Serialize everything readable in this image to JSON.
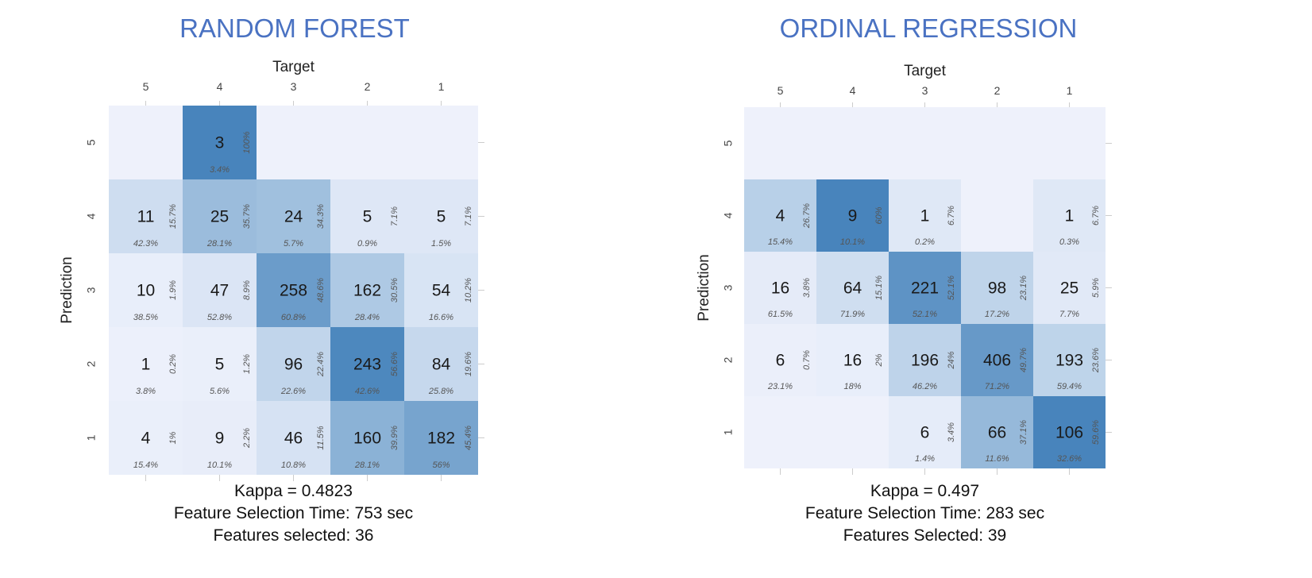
{
  "chart_data": [
    {
      "type": "heatmap",
      "title": "RANDOM FOREST",
      "xlabel": "Target",
      "ylabel": "Prediction",
      "x_categories": [
        "5",
        "4",
        "3",
        "2",
        "1"
      ],
      "y_categories": [
        "5",
        "4",
        "3",
        "2",
        "1"
      ],
      "cells": [
        [
          null,
          {
            "count": "3",
            "row_pct": "100%",
            "col_pct": "3.4%"
          },
          null,
          null,
          null
        ],
        [
          {
            "count": "11",
            "row_pct": "15.7%",
            "col_pct": "42.3%"
          },
          {
            "count": "25",
            "row_pct": "35.7%",
            "col_pct": "28.1%"
          },
          {
            "count": "24",
            "row_pct": "34.3%",
            "col_pct": "5.7%"
          },
          {
            "count": "5",
            "row_pct": "7.1%",
            "col_pct": "0.9%"
          },
          {
            "count": "5",
            "row_pct": "7.1%",
            "col_pct": "1.5%"
          }
        ],
        [
          {
            "count": "10",
            "row_pct": "1.9%",
            "col_pct": "38.5%"
          },
          {
            "count": "47",
            "row_pct": "8.9%",
            "col_pct": "52.8%"
          },
          {
            "count": "258",
            "row_pct": "48.6%",
            "col_pct": "60.8%"
          },
          {
            "count": "162",
            "row_pct": "30.5%",
            "col_pct": "28.4%"
          },
          {
            "count": "54",
            "row_pct": "10.2%",
            "col_pct": "16.6%"
          }
        ],
        [
          {
            "count": "1",
            "row_pct": "0.2%",
            "col_pct": "3.8%"
          },
          {
            "count": "5",
            "row_pct": "1.2%",
            "col_pct": "5.6%"
          },
          {
            "count": "96",
            "row_pct": "22.4%",
            "col_pct": "22.6%"
          },
          {
            "count": "243",
            "row_pct": "56.6%",
            "col_pct": "42.6%"
          },
          {
            "count": "84",
            "row_pct": "19.6%",
            "col_pct": "25.8%"
          }
        ],
        [
          {
            "count": "4",
            "row_pct": "1%",
            "col_pct": "15.4%"
          },
          {
            "count": "9",
            "row_pct": "2.2%",
            "col_pct": "10.1%"
          },
          {
            "count": "46",
            "row_pct": "11.5%",
            "col_pct": "10.8%"
          },
          {
            "count": "160",
            "row_pct": "39.9%",
            "col_pct": "28.1%"
          },
          {
            "count": "182",
            "row_pct": "45.4%",
            "col_pct": "56%"
          }
        ]
      ],
      "footer": [
        "Kappa = 0.4823",
        "Feature Selection Time: 753 sec",
        "Features selected: 36"
      ]
    },
    {
      "type": "heatmap",
      "title": "ORDINAL REGRESSION",
      "xlabel": "Target",
      "ylabel": "Prediction",
      "x_categories": [
        "5",
        "4",
        "3",
        "2",
        "1"
      ],
      "y_categories": [
        "5",
        "4",
        "3",
        "2",
        "1"
      ],
      "cells": [
        [
          null,
          null,
          null,
          null,
          null
        ],
        [
          {
            "count": "4",
            "row_pct": "26.7%",
            "col_pct": "15.4%"
          },
          {
            "count": "9",
            "row_pct": "60%",
            "col_pct": "10.1%"
          },
          {
            "count": "1",
            "row_pct": "6.7%",
            "col_pct": "0.2%"
          },
          null,
          {
            "count": "1",
            "row_pct": "6.7%",
            "col_pct": "0.3%"
          }
        ],
        [
          {
            "count": "16",
            "row_pct": "3.8%",
            "col_pct": "61.5%"
          },
          {
            "count": "64",
            "row_pct": "15.1%",
            "col_pct": "71.9%"
          },
          {
            "count": "221",
            "row_pct": "52.1%",
            "col_pct": "52.1%"
          },
          {
            "count": "98",
            "row_pct": "23.1%",
            "col_pct": "17.2%"
          },
          {
            "count": "25",
            "row_pct": "5.9%",
            "col_pct": "7.7%"
          }
        ],
        [
          {
            "count": "6",
            "row_pct": "0.7%",
            "col_pct": "23.1%"
          },
          {
            "count": "16",
            "row_pct": "2%",
            "col_pct": "18%"
          },
          {
            "count": "196",
            "row_pct": "24%",
            "col_pct": "46.2%"
          },
          {
            "count": "406",
            "row_pct": "49.7%",
            "col_pct": "71.2%"
          },
          {
            "count": "193",
            "row_pct": "23.6%",
            "col_pct": "59.4%"
          }
        ],
        [
          null,
          null,
          {
            "count": "6",
            "row_pct": "3.4%",
            "col_pct": "1.4%"
          },
          {
            "count": "66",
            "row_pct": "37.1%",
            "col_pct": "11.6%"
          },
          {
            "count": "106",
            "row_pct": "59.6%",
            "col_pct": "32.6%"
          }
        ]
      ],
      "footer": [
        "Kappa = 0.497",
        "Feature Selection Time: 283 sec",
        "Features Selected: 39"
      ]
    }
  ]
}
